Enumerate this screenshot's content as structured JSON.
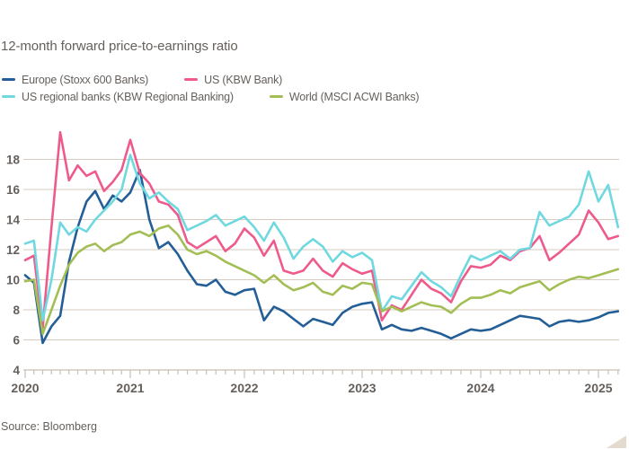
{
  "title": "12-month forward price-to-earnings ratio",
  "source": "Source: Bloomberg",
  "colors": {
    "background": "#FFFFFF",
    "text": "#66605C",
    "grid": "#D5CBBF",
    "axis": "#C9BFB2",
    "triangle": "#E4DACD"
  },
  "chart_data": {
    "type": "line",
    "title": "12-month forward price-to-earnings ratio",
    "x_start": "2020-01",
    "x_end": "2025-03",
    "x_interval": "monthly",
    "x_year_labels": [
      "2020",
      "2021",
      "2022",
      "2023",
      "2024",
      "2025"
    ],
    "yticks": [
      4,
      6,
      8,
      10,
      12,
      14,
      16,
      18
    ],
    "ylim": [
      4,
      20.2
    ],
    "grid": "horizontal",
    "legend_position": "top",
    "series": [
      {
        "name": "Europe (Stoxx 600 Banks)",
        "color": "#235E96",
        "values": [
          10.3,
          9.8,
          5.8,
          6.9,
          7.6,
          11.2,
          13.5,
          15.2,
          15.9,
          14.7,
          15.6,
          15.2,
          15.8,
          17.3,
          14.0,
          12.1,
          12.5,
          11.7,
          10.6,
          9.7,
          9.6,
          10.0,
          9.2,
          9.0,
          9.3,
          9.4,
          7.3,
          8.2,
          7.9,
          7.4,
          6.9,
          7.4,
          7.2,
          7.0,
          7.8,
          8.2,
          8.4,
          8.5,
          6.7,
          7.0,
          6.7,
          6.6,
          6.8,
          6.6,
          6.4,
          6.1,
          6.4,
          6.7,
          6.6,
          6.7,
          7.0,
          7.3,
          7.6,
          7.5,
          7.4,
          6.9,
          7.2,
          7.3,
          7.2,
          7.3,
          7.5,
          7.8,
          7.9
        ]
      },
      {
        "name": "US (KBW Bank)",
        "color": "#EE5A8C",
        "values": [
          11.3,
          11.6,
          6.8,
          13.5,
          19.8,
          16.6,
          17.6,
          16.9,
          17.2,
          15.9,
          16.5,
          17.3,
          19.3,
          17.1,
          16.4,
          15.2,
          15.0,
          14.3,
          12.5,
          12.1,
          12.5,
          12.9,
          11.9,
          12.4,
          13.4,
          12.8,
          11.6,
          12.6,
          10.6,
          10.4,
          10.6,
          11.4,
          10.6,
          10.2,
          11.1,
          10.7,
          10.4,
          10.6,
          7.3,
          8.3,
          8.0,
          9.0,
          10.0,
          9.4,
          9.1,
          8.5,
          9.9,
          10.9,
          10.8,
          11.0,
          11.6,
          11.3,
          11.9,
          12.1,
          12.9,
          11.3,
          11.8,
          12.4,
          13.0,
          14.6,
          13.8,
          12.7,
          12.9
        ]
      },
      {
        "name": "US regional banks (KBW Regional Banking)",
        "color": "#6FD8E0",
        "values": [
          12.4,
          12.6,
          7.3,
          10.0,
          13.8,
          13.0,
          13.5,
          13.2,
          14.0,
          14.6,
          15.2,
          16.0,
          18.3,
          16.4,
          15.4,
          15.8,
          15.2,
          14.7,
          13.3,
          13.6,
          13.9,
          14.3,
          13.6,
          13.9,
          14.2,
          13.5,
          12.6,
          13.8,
          12.8,
          11.4,
          12.2,
          12.7,
          12.2,
          11.2,
          11.9,
          11.5,
          11.8,
          11.3,
          7.9,
          8.9,
          8.7,
          9.6,
          10.5,
          9.9,
          9.5,
          8.9,
          10.3,
          11.6,
          11.3,
          11.6,
          11.9,
          11.4,
          12.0,
          12.1,
          14.5,
          13.6,
          13.9,
          14.2,
          15.0,
          17.2,
          15.2,
          16.3,
          13.5
        ]
      },
      {
        "name": "World (MSCI ACWI Banks)",
        "color": "#A3BE55",
        "values": [
          9.9,
          10.0,
          6.4,
          8.0,
          9.6,
          11.0,
          11.8,
          12.2,
          12.4,
          11.9,
          12.3,
          12.5,
          13.0,
          13.2,
          12.9,
          13.4,
          13.6,
          13.0,
          12.0,
          11.7,
          11.9,
          11.6,
          11.2,
          10.9,
          10.6,
          10.3,
          9.8,
          10.3,
          9.7,
          9.3,
          9.5,
          9.8,
          9.2,
          9.0,
          9.6,
          9.4,
          9.8,
          9.7,
          7.9,
          8.2,
          7.9,
          8.2,
          8.5,
          8.3,
          8.2,
          7.8,
          8.4,
          8.8,
          8.8,
          9.0,
          9.3,
          9.1,
          9.5,
          9.7,
          9.9,
          9.3,
          9.7,
          10.0,
          10.2,
          10.1,
          10.3,
          10.5,
          10.7
        ]
      }
    ]
  }
}
